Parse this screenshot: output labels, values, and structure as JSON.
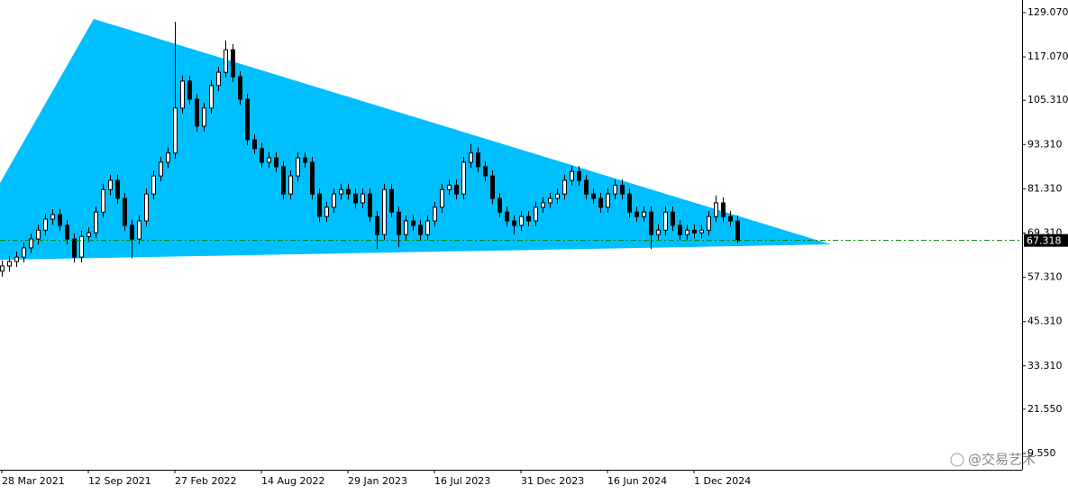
{
  "chart_data": {
    "type": "candlestick",
    "categories": [
      "28 Mar 2021",
      null,
      null,
      null,
      null,
      null,
      null,
      null,
      null,
      null,
      null,
      null,
      "12 Sep 2021",
      null,
      null,
      null,
      null,
      null,
      null,
      null,
      null,
      null,
      null,
      null,
      "27 Feb 2022",
      null,
      null,
      null,
      null,
      null,
      null,
      null,
      null,
      null,
      null,
      null,
      "14 Aug 2022",
      null,
      null,
      null,
      null,
      null,
      null,
      null,
      null,
      null,
      null,
      null,
      "29 Jan 2023",
      null,
      null,
      null,
      null,
      null,
      null,
      null,
      null,
      null,
      null,
      null,
      "16 Jul 2023",
      null,
      null,
      null,
      null,
      null,
      null,
      null,
      null,
      null,
      null,
      null,
      "31 Dec 2023",
      null,
      null,
      null,
      null,
      null,
      null,
      null,
      null,
      null,
      null,
      null,
      "16 Jun 2024",
      null,
      null,
      null,
      null,
      null,
      null,
      null,
      null,
      null,
      null,
      null,
      "1 Dec 2024",
      null,
      null,
      null,
      null,
      null,
      null
    ],
    "open": [
      59.0,
      60.4,
      61.6,
      62.8,
      65.3,
      67.7,
      70.1,
      73.1,
      74.3,
      71.4,
      67.7,
      62.8,
      68.4,
      69.4,
      75.0,
      81.1,
      83.6,
      78.7,
      71.4,
      67.7,
      72.6,
      79.9,
      84.8,
      88.5,
      91.0,
      103.2,
      110.5,
      105.6,
      98.3,
      103.2,
      109.3,
      112.9,
      119.0,
      111.7,
      105.6,
      94.6,
      92.2,
      88.5,
      89.7,
      87.3,
      79.9,
      84.8,
      89.7,
      88.5,
      79.9,
      73.8,
      76.3,
      79.9,
      81.1,
      79.9,
      77.5,
      79.9,
      73.8,
      68.9,
      81.1,
      75.0,
      68.9,
      72.6,
      71.4,
      68.9,
      72.6,
      76.3,
      81.1,
      82.3,
      79.9,
      88.5,
      91.0,
      87.3,
      84.8,
      78.7,
      75.0,
      72.6,
      71.4,
      73.8,
      72.6,
      76.3,
      77.5,
      78.7,
      79.9,
      83.6,
      86.0,
      83.6,
      79.9,
      78.7,
      76.3,
      79.9,
      82.3,
      79.9,
      75.0,
      73.8,
      75.0,
      68.9,
      70.1,
      75.0,
      71.4,
      68.9,
      70.1,
      69.4,
      70.1,
      73.8,
      77.5,
      73.8,
      72.6
    ],
    "high": [
      61.9,
      63.1,
      64.3,
      66.8,
      69.2,
      71.6,
      74.6,
      75.8,
      75.8,
      72.9,
      69.2,
      69.9,
      70.9,
      76.5,
      82.6,
      85.1,
      85.1,
      80.2,
      72.9,
      74.1,
      81.4,
      86.3,
      90.0,
      92.5,
      126.6,
      112.0,
      112.0,
      107.1,
      104.7,
      110.8,
      114.4,
      121.5,
      120.5,
      113.2,
      107.1,
      96.1,
      93.7,
      91.2,
      91.2,
      88.8,
      86.3,
      91.2,
      91.2,
      90.0,
      81.4,
      77.8,
      81.4,
      82.6,
      82.6,
      81.4,
      81.4,
      81.4,
      75.3,
      82.6,
      82.6,
      76.5,
      74.1,
      74.1,
      72.9,
      74.1,
      77.8,
      82.6,
      83.8,
      83.8,
      90.0,
      93.5,
      92.5,
      88.8,
      86.3,
      80.2,
      76.5,
      74.1,
      75.3,
      75.3,
      77.8,
      79.0,
      80.2,
      81.4,
      85.1,
      87.5,
      87.5,
      85.1,
      81.4,
      80.2,
      81.4,
      83.8,
      83.8,
      81.4,
      76.5,
      76.5,
      76.5,
      71.6,
      76.5,
      76.5,
      72.9,
      71.6,
      71.6,
      71.6,
      75.3,
      79.5,
      79.0,
      75.3,
      74.1
    ],
    "low": [
      57.5,
      58.9,
      60.1,
      61.3,
      63.8,
      66.2,
      68.6,
      71.6,
      69.9,
      66.2,
      61.3,
      61.3,
      66.9,
      67.9,
      73.5,
      79.6,
      77.2,
      69.9,
      62.5,
      66.2,
      71.1,
      78.4,
      83.3,
      87.0,
      89.5,
      101.7,
      104.1,
      96.8,
      96.8,
      101.7,
      107.8,
      111.4,
      110.2,
      104.1,
      93.1,
      90.7,
      87.0,
      87.0,
      85.8,
      78.4,
      78.4,
      83.3,
      87.0,
      78.4,
      72.3,
      72.3,
      74.8,
      78.4,
      78.4,
      76.0,
      76.0,
      72.3,
      65.0,
      67.4,
      73.5,
      65.5,
      67.4,
      69.9,
      67.4,
      67.4,
      71.1,
      74.8,
      79.6,
      78.4,
      78.4,
      87.0,
      85.8,
      83.3,
      77.2,
      73.5,
      71.1,
      69.0,
      69.9,
      71.1,
      71.1,
      74.8,
      76.0,
      77.2,
      78.4,
      82.1,
      82.1,
      78.4,
      77.2,
      74.8,
      74.8,
      78.4,
      78.4,
      73.5,
      72.3,
      72.3,
      65.0,
      67.4,
      68.6,
      69.9,
      67.4,
      67.4,
      67.9,
      67.9,
      68.6,
      72.3,
      72.3,
      71.1,
      66.5
    ],
    "close": [
      60.4,
      61.6,
      62.8,
      65.3,
      67.7,
      70.1,
      73.1,
      74.3,
      71.4,
      67.7,
      62.8,
      68.4,
      69.4,
      75.0,
      81.1,
      83.6,
      78.7,
      71.4,
      67.7,
      72.6,
      79.9,
      84.8,
      88.5,
      91.0,
      103.2,
      110.5,
      105.6,
      98.3,
      103.2,
      109.3,
      112.9,
      119.0,
      111.7,
      105.6,
      94.6,
      92.2,
      88.5,
      89.7,
      87.3,
      79.9,
      84.8,
      89.7,
      88.5,
      79.9,
      73.8,
      76.3,
      79.9,
      81.1,
      79.9,
      77.5,
      79.9,
      73.8,
      68.9,
      81.1,
      75.0,
      68.9,
      72.6,
      71.4,
      68.9,
      72.6,
      76.3,
      81.1,
      82.3,
      79.9,
      88.5,
      91.0,
      87.3,
      84.8,
      78.7,
      75.0,
      72.6,
      71.4,
      73.8,
      72.6,
      76.3,
      77.5,
      78.7,
      79.9,
      83.6,
      86.0,
      83.6,
      79.9,
      78.7,
      76.3,
      79.9,
      82.3,
      79.9,
      75.0,
      73.8,
      75.0,
      68.9,
      70.1,
      75.0,
      71.4,
      68.9,
      70.1,
      69.4,
      70.1,
      73.8,
      77.5,
      73.8,
      72.6,
      67.3
    ],
    "ylim": [
      5.15,
      132.49
    ],
    "yticks": [
      {
        "value": 129.07,
        "label": "129.070"
      },
      {
        "value": 117.07,
        "label": "117.070"
      },
      {
        "value": 105.31,
        "label": "105.310"
      },
      {
        "value": 93.31,
        "label": "93.310"
      },
      {
        "value": 81.31,
        "label": "81.310"
      },
      {
        "value": 69.31,
        "label": "69.310"
      },
      {
        "value": 57.31,
        "label": "57.310"
      },
      {
        "value": 45.31,
        "label": "45.310"
      },
      {
        "value": 33.31,
        "label": "33.310"
      },
      {
        "value": 21.55,
        "label": "21.550"
      },
      {
        "value": 9.55,
        "label": "9.550"
      }
    ],
    "current_price": 67.318,
    "current_price_color": "#008000",
    "triangle": {
      "color": "#00bfff",
      "points": [
        [
          -0.25,
          82.86
        ],
        [
          12.75,
          127.36
        ],
        [
          115,
          66.24
        ],
        [
          -0.25,
          62.08
        ]
      ]
    }
  },
  "watermark": "@交易艺术"
}
